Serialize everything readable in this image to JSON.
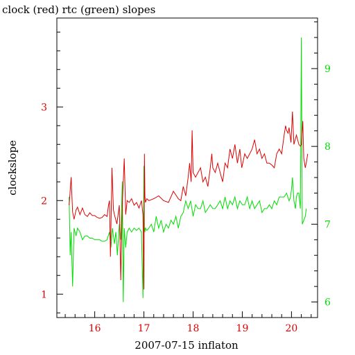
{
  "chart_data": {
    "type": "line",
    "title": "clock (red) rtc (green) slopes",
    "xlabel": "2007-07-15 inflaton",
    "ylabel": "clockslope",
    "x_range": [
      15.23,
      20.53
    ],
    "xticks": [
      16,
      17,
      18,
      19,
      20
    ],
    "y_left": {
      "range": [
        0.75,
        3.95
      ],
      "ticks": [
        1,
        2,
        3
      ],
      "minor_step": 0.2,
      "color": "#dd0000"
    },
    "y_right": {
      "range": [
        5.8,
        9.65
      ],
      "ticks": [
        6,
        7,
        8,
        9
      ],
      "minor_step": 0.2,
      "color": "#00dd00"
    },
    "grid": false,
    "series": [
      {
        "name": "clock",
        "color": "#dd0000",
        "axis": "left",
        "x": [
          15.48,
          15.52,
          15.55,
          15.58,
          15.62,
          15.65,
          15.7,
          15.75,
          15.8,
          15.85,
          15.9,
          15.95,
          16.0,
          16.05,
          16.1,
          16.15,
          16.2,
          16.25,
          16.28,
          16.3,
          16.32,
          16.35,
          16.38,
          16.4,
          16.45,
          16.5,
          16.53,
          16.56,
          16.6,
          16.63,
          16.66,
          16.7,
          16.75,
          16.8,
          16.85,
          16.9,
          16.95,
          16.98,
          17.0,
          17.01,
          17.02,
          17.03,
          17.06,
          17.1,
          17.2,
          17.3,
          17.4,
          17.5,
          17.6,
          17.7,
          17.75,
          17.8,
          17.85,
          17.9,
          17.93,
          17.96,
          17.98,
          18.0,
          18.05,
          18.1,
          18.15,
          18.2,
          18.25,
          18.3,
          18.35,
          18.38,
          18.4,
          18.45,
          18.5,
          18.55,
          18.6,
          18.65,
          18.7,
          18.75,
          18.8,
          18.85,
          18.9,
          18.95,
          18.99,
          19.05,
          19.1,
          19.15,
          19.2,
          19.25,
          19.3,
          19.35,
          19.4,
          19.45,
          19.5,
          19.55,
          19.6,
          19.65,
          19.7,
          19.75,
          19.8,
          19.85,
          19.88,
          19.9,
          19.93,
          19.95,
          19.97,
          19.99,
          20.02,
          20.05,
          20.1,
          20.15,
          20.18,
          20.2,
          20.23,
          20.25,
          20.28,
          20.3,
          20.33
        ],
        "values": [
          1.95,
          2.25,
          1.88,
          1.8,
          1.9,
          1.93,
          1.85,
          1.92,
          1.85,
          1.83,
          1.87,
          1.84,
          1.84,
          1.82,
          1.81,
          1.82,
          1.85,
          1.83,
          1.95,
          2.0,
          1.4,
          2.35,
          1.9,
          1.85,
          1.75,
          1.95,
          1.15,
          1.95,
          2.45,
          1.85,
          2.0,
          1.98,
          2.02,
          1.95,
          1.98,
          1.92,
          2.0,
          1.85,
          1.05,
          2.5,
          2.05,
          1.98,
          2.02,
          2.0,
          2.02,
          2.05,
          2.0,
          1.98,
          2.1,
          2.02,
          2.0,
          2.15,
          2.05,
          2.25,
          2.4,
          2.2,
          2.75,
          2.3,
          2.25,
          2.3,
          2.35,
          2.2,
          2.25,
          2.15,
          2.35,
          2.5,
          2.35,
          2.3,
          2.4,
          2.3,
          2.2,
          2.4,
          2.35,
          2.55,
          2.45,
          2.6,
          2.4,
          2.55,
          2.35,
          2.5,
          2.45,
          2.5,
          2.55,
          2.65,
          2.5,
          2.55,
          2.45,
          2.5,
          2.4,
          2.4,
          2.38,
          2.35,
          2.5,
          2.55,
          2.5,
          2.7,
          2.8,
          2.75,
          2.72,
          2.78,
          2.7,
          2.62,
          2.95,
          2.6,
          2.7,
          2.6,
          2.58,
          2.6,
          2.85,
          2.45,
          2.35,
          2.4,
          2.5
        ]
      },
      {
        "name": "rtc",
        "color": "#00dd00",
        "axis": "right",
        "x": [
          15.48,
          15.5,
          15.52,
          15.55,
          15.58,
          15.62,
          15.65,
          15.7,
          15.75,
          15.8,
          15.85,
          15.9,
          15.95,
          16.0,
          16.05,
          16.1,
          16.15,
          16.2,
          16.25,
          16.3,
          16.33,
          16.36,
          16.4,
          16.43,
          16.46,
          16.5,
          16.53,
          16.56,
          16.58,
          16.6,
          16.63,
          16.66,
          16.7,
          16.75,
          16.8,
          16.85,
          16.9,
          16.95,
          16.98,
          17.0,
          17.01,
          17.02,
          17.03,
          17.06,
          17.1,
          17.15,
          17.2,
          17.25,
          17.3,
          17.35,
          17.4,
          17.45,
          17.5,
          17.55,
          17.6,
          17.65,
          17.7,
          17.75,
          17.8,
          17.85,
          17.9,
          17.95,
          18.0,
          18.05,
          18.1,
          18.15,
          18.2,
          18.25,
          18.3,
          18.35,
          18.4,
          18.45,
          18.5,
          18.55,
          18.6,
          18.65,
          18.7,
          18.75,
          18.8,
          18.85,
          18.9,
          18.95,
          19.0,
          19.05,
          19.1,
          19.15,
          19.2,
          19.25,
          19.3,
          19.35,
          19.4,
          19.45,
          19.5,
          19.55,
          19.6,
          19.65,
          19.7,
          19.75,
          19.8,
          19.85,
          19.9,
          19.95,
          19.98,
          20.0,
          20.02,
          20.05,
          20.08,
          20.1,
          20.12,
          20.15,
          20.18,
          20.2,
          20.22,
          20.25,
          20.28,
          20.3
        ],
        "values": [
          7.35,
          6.6,
          6.9,
          6.2,
          6.95,
          6.85,
          6.95,
          6.9,
          6.8,
          6.85,
          6.85,
          6.82,
          6.82,
          6.8,
          6.8,
          6.8,
          6.78,
          6.78,
          6.8,
          6.9,
          6.7,
          6.95,
          6.75,
          6.9,
          6.6,
          7.0,
          6.8,
          7.55,
          6.0,
          6.95,
          6.7,
          6.9,
          6.95,
          6.9,
          6.95,
          6.92,
          6.95,
          6.9,
          6.05,
          7.75,
          6.95,
          6.9,
          6.95,
          6.92,
          6.95,
          7.0,
          6.9,
          7.1,
          6.95,
          7.05,
          6.9,
          7.0,
          6.95,
          7.05,
          7.0,
          7.1,
          6.95,
          7.1,
          7.15,
          7.3,
          7.2,
          7.3,
          7.1,
          7.25,
          7.2,
          7.2,
          7.3,
          7.15,
          7.2,
          7.25,
          7.2,
          7.2,
          7.25,
          7.3,
          7.2,
          7.35,
          7.2,
          7.3,
          7.25,
          7.35,
          7.2,
          7.3,
          7.25,
          7.25,
          7.35,
          7.2,
          7.3,
          7.2,
          7.25,
          7.3,
          7.15,
          7.2,
          7.2,
          7.25,
          7.2,
          7.3,
          7.25,
          7.35,
          7.35,
          7.35,
          7.4,
          7.3,
          7.35,
          7.45,
          7.6,
          7.3,
          7.2,
          7.35,
          7.4,
          7.4,
          7.2,
          9.4,
          7.0,
          7.05,
          7.1,
          7.2
        ]
      }
    ]
  }
}
